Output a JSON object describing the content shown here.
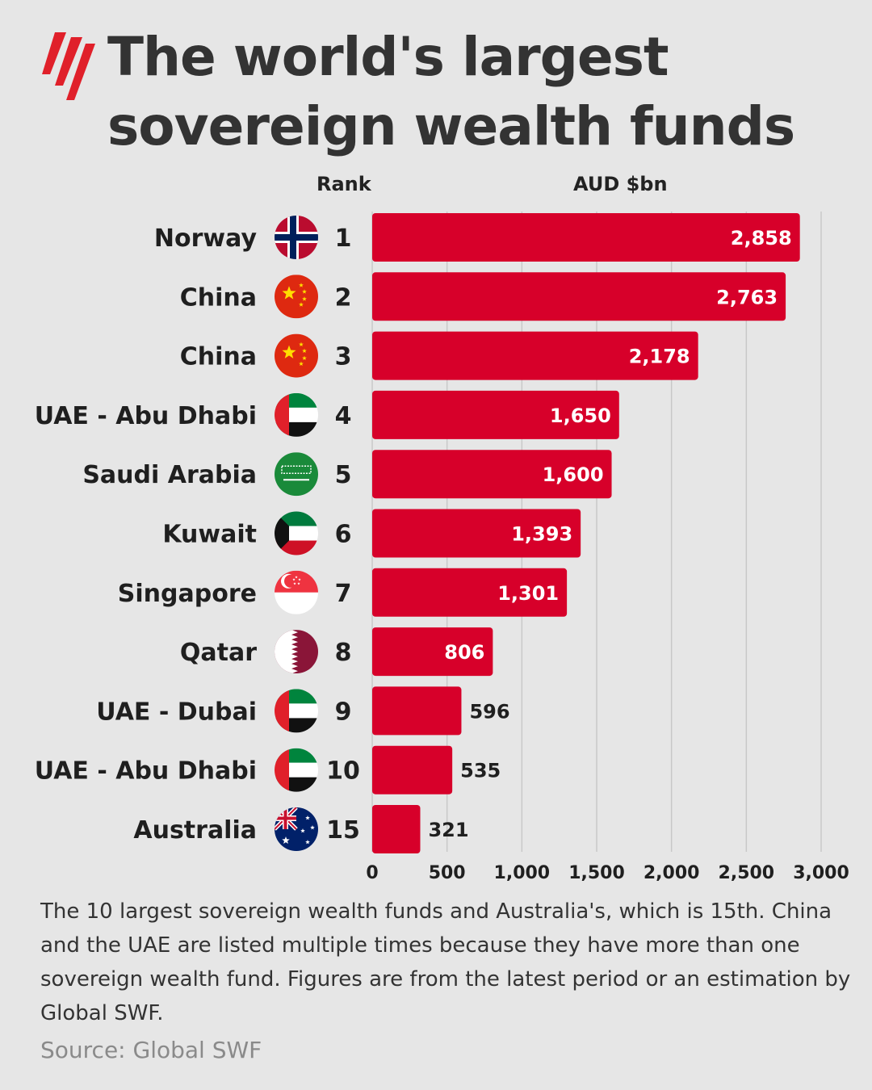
{
  "title": "The world's largest sovereign wealth funds",
  "logo": "sbs-logo",
  "column_headers": {
    "rank": "Rank",
    "value": "AUD $bn"
  },
  "caption": "The 10 largest sovereign wealth funds and Australia's, which is 15th. China and the UAE are listed multiple times because they have more than one sovereign wealth fund. Figures are from the latest period or an estimation by Global SWF.",
  "source": "Source: Global SWF",
  "colors": {
    "bar": "#d7002a",
    "background": "#e6e6e6",
    "grid": "#c8c8c8"
  },
  "chart_data": {
    "type": "bar",
    "orientation": "horizontal",
    "xlabel": "AUD $bn",
    "xlim": [
      0,
      3000
    ],
    "xticks": [
      0,
      500,
      1000,
      1500,
      2000,
      2500,
      3000
    ],
    "tick_labels": [
      "0",
      "500",
      "1,000",
      "1,500",
      "2,000",
      "2,500",
      "3,000"
    ],
    "grid": "vertical",
    "rows": [
      {
        "country": "Norway",
        "flag": "norway-flag-icon",
        "rank": "1",
        "value": 2858,
        "label": "2,858"
      },
      {
        "country": "China",
        "flag": "china-flag-icon",
        "rank": "2",
        "value": 2763,
        "label": "2,763"
      },
      {
        "country": "China",
        "flag": "china-flag-icon",
        "rank": "3",
        "value": 2178,
        "label": "2,178"
      },
      {
        "country": "UAE - Abu Dhabi",
        "flag": "uae-flag-icon",
        "rank": "4",
        "value": 1650,
        "label": "1,650"
      },
      {
        "country": "Saudi Arabia",
        "flag": "saudi-arabia-flag-icon",
        "rank": "5",
        "value": 1600,
        "label": "1,600"
      },
      {
        "country": "Kuwait",
        "flag": "kuwait-flag-icon",
        "rank": "6",
        "value": 1393,
        "label": "1,393"
      },
      {
        "country": "Singapore",
        "flag": "singapore-flag-icon",
        "rank": "7",
        "value": 1301,
        "label": "1,301"
      },
      {
        "country": "Qatar",
        "flag": "qatar-flag-icon",
        "rank": "8",
        "value": 806,
        "label": "806"
      },
      {
        "country": "UAE - Dubai",
        "flag": "uae-flag-icon",
        "rank": "9",
        "value": 596,
        "label": "596"
      },
      {
        "country": "UAE - Abu Dhabi",
        "flag": "uae-flag-icon",
        "rank": "10",
        "value": 535,
        "label": "535"
      },
      {
        "country": "Australia",
        "flag": "australia-flag-icon",
        "rank": "15",
        "value": 321,
        "label": "321"
      }
    ]
  }
}
